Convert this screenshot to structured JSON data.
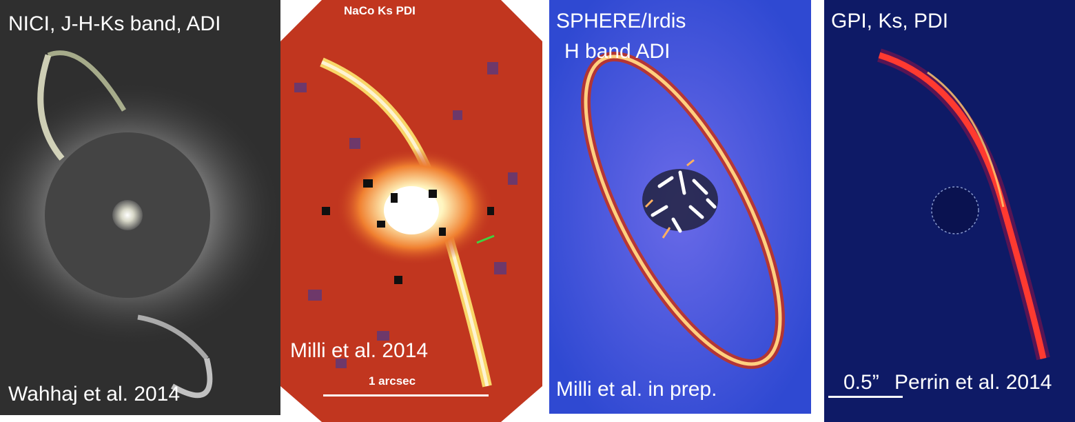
{
  "panels": [
    {
      "title": "NICI, J-H-Ks band, ADI",
      "citation": "Wahhaj et al. 2014",
      "background": "#3a3a3a"
    },
    {
      "title": "NaCo Ks PDI",
      "citation": "Milli et al. 2014",
      "scale_label": "1 arcsec",
      "background": "#c1361f"
    },
    {
      "title_line1": "SPHERE/Irdis",
      "title_line2": "H band ADI",
      "citation": "Milli et al. in prep.",
      "background": "#3b54d8"
    },
    {
      "title": "GPI, Ks, PDI",
      "scale_label": "0.5”",
      "citation": "Perrin et al. 2014",
      "background": "#0e1a66"
    }
  ]
}
